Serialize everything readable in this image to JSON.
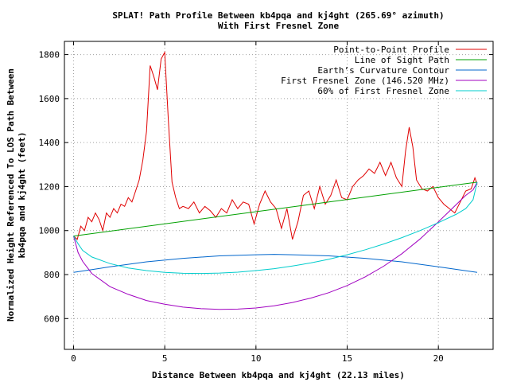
{
  "chart_data": {
    "type": "line",
    "title": "SPLAT! Path Profile Between kb4pqa and kj4ght (265.69° azimuth)",
    "subtitle": "With First Fresnel Zone",
    "xlabel": "Distance Between kb4pqa and kj4ght (22.13 miles)",
    "ylabel_line1": "Normalized Height Referenced To LOS Path Between",
    "ylabel_line2": "kb4pqa and kj4ght (feet)",
    "xlim": [
      -0.5,
      23
    ],
    "ylim": [
      460,
      1860
    ],
    "xticks": [
      0,
      5,
      10,
      15,
      20
    ],
    "yticks": [
      600,
      800,
      1000,
      1200,
      1400,
      1600,
      1800
    ],
    "grid": true,
    "legend_position": "top-right",
    "series": [
      {
        "name": "Point-to-Point Profile",
        "color": "#e00000",
        "x": [
          0,
          0.2,
          0.4,
          0.6,
          0.8,
          1.0,
          1.2,
          1.4,
          1.6,
          1.8,
          2.0,
          2.2,
          2.4,
          2.6,
          2.8,
          3.0,
          3.2,
          3.4,
          3.6,
          3.8,
          4.0,
          4.2,
          4.4,
          4.6,
          4.8,
          5.0,
          5.2,
          5.4,
          5.6,
          5.8,
          6.0,
          6.3,
          6.6,
          6.9,
          7.2,
          7.5,
          7.8,
          8.1,
          8.4,
          8.7,
          9.0,
          9.3,
          9.6,
          9.9,
          10.2,
          10.5,
          10.8,
          11.1,
          11.4,
          11.7,
          12.0,
          12.3,
          12.6,
          12.9,
          13.2,
          13.5,
          13.8,
          14.1,
          14.4,
          14.7,
          15.0,
          15.3,
          15.6,
          15.9,
          16.2,
          16.5,
          16.8,
          17.1,
          17.4,
          17.7,
          18.0,
          18.2,
          18.4,
          18.6,
          18.8,
          19.1,
          19.4,
          19.7,
          20.0,
          20.3,
          20.6,
          20.9,
          21.2,
          21.5,
          21.8,
          22.0,
          22.13
        ],
        "y": [
          975,
          960,
          1020,
          1000,
          1060,
          1040,
          1080,
          1050,
          1000,
          1080,
          1060,
          1100,
          1080,
          1120,
          1110,
          1150,
          1130,
          1180,
          1230,
          1320,
          1450,
          1750,
          1700,
          1640,
          1780,
          1810,
          1500,
          1220,
          1150,
          1100,
          1110,
          1100,
          1130,
          1080,
          1110,
          1090,
          1060,
          1100,
          1080,
          1140,
          1100,
          1130,
          1120,
          1030,
          1120,
          1180,
          1130,
          1100,
          1010,
          1100,
          960,
          1040,
          1160,
          1180,
          1100,
          1200,
          1120,
          1160,
          1230,
          1150,
          1140,
          1200,
          1230,
          1250,
          1280,
          1260,
          1310,
          1250,
          1310,
          1240,
          1200,
          1360,
          1470,
          1380,
          1230,
          1190,
          1180,
          1200,
          1150,
          1120,
          1100,
          1080,
          1130,
          1180,
          1190,
          1240,
          1210
        ]
      },
      {
        "name": "Line of Sight Path",
        "color": "#00a000",
        "x": [
          0,
          22.13
        ],
        "y": [
          975,
          1220
        ]
      },
      {
        "name": "Earth’s Curvature Contour",
        "color": "#0066cc",
        "x": [
          0,
          2,
          4,
          6,
          8,
          10,
          11,
          12,
          14,
          16,
          18,
          20,
          22.13
        ],
        "y": [
          810,
          835,
          858,
          874,
          885,
          890,
          892,
          890,
          885,
          874,
          858,
          835,
          810
        ]
      },
      {
        "name": "First Fresnel Zone (146.520 MHz)",
        "color": "#a000c0",
        "x": [
          0,
          0.25,
          0.5,
          1,
          2,
          3,
          4,
          5,
          6,
          7,
          8,
          9,
          10,
          11,
          12,
          13,
          14,
          15,
          16,
          17,
          18,
          19,
          20,
          21,
          21.5,
          21.9,
          22.13
        ],
        "y": [
          975,
          900,
          860,
          805,
          745,
          710,
          682,
          665,
          652,
          645,
          642,
          643,
          648,
          658,
          673,
          693,
          718,
          750,
          790,
          838,
          895,
          962,
          1040,
          1120,
          1160,
          1185,
          1220
        ]
      },
      {
        "name": "60% of First Fresnel Zone",
        "color": "#00cccc",
        "x": [
          0,
          0.25,
          0.5,
          1,
          2,
          3,
          4,
          5,
          6,
          7,
          8,
          9,
          10,
          11,
          12,
          13,
          14,
          15,
          16,
          17,
          18,
          19,
          20,
          21,
          21.5,
          21.9,
          22.13
        ],
        "y": [
          975,
          940,
          910,
          880,
          850,
          830,
          818,
          810,
          806,
          805,
          807,
          811,
          818,
          827,
          839,
          853,
          870,
          890,
          913,
          939,
          968,
          1000,
          1036,
          1075,
          1100,
          1140,
          1220
        ]
      }
    ]
  }
}
